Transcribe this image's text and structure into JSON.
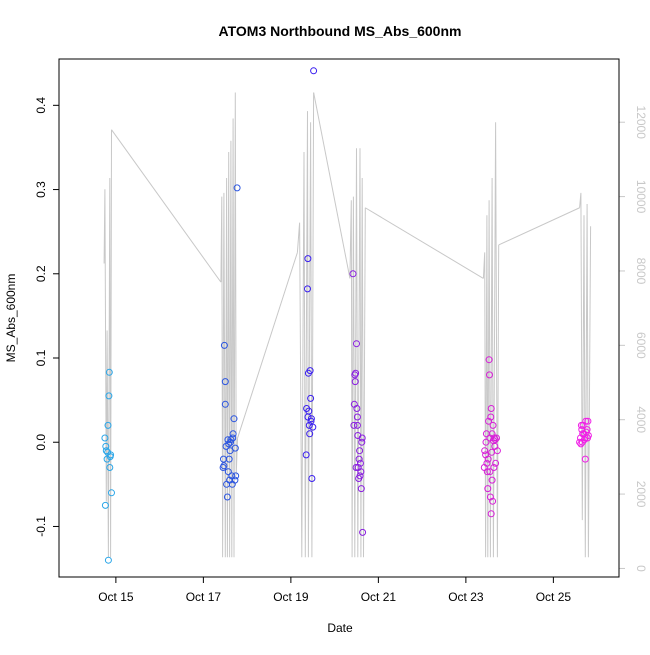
{
  "chart_data": {
    "type": "scatter",
    "title": "ATOM3 Northbound MS_Abs_600nm",
    "xlabel": "Date",
    "ylabel": "MS_Abs_600nm",
    "x_ticks": [
      "Oct 15",
      "Oct 17",
      "Oct 19",
      "Oct 21",
      "Oct 23",
      "Oct 25"
    ],
    "x_tick_values": [
      15,
      17,
      19,
      21,
      23,
      25
    ],
    "xlim": [
      13.7,
      26.5
    ],
    "y_ticks": [
      -0.1,
      0.0,
      0.1,
      0.2,
      0.3,
      0.4
    ],
    "y_tick_labels": [
      "-0.1",
      "0.0",
      "0.1",
      "0.2",
      "0.3",
      "0.4"
    ],
    "ylim": [
      -0.16,
      0.455
    ],
    "y2_ticks": [
      0,
      2000,
      4000,
      6000,
      8000,
      10000,
      12000
    ],
    "y2_tick_labels": [
      "0",
      "2000",
      "4000",
      "6000",
      "8000",
      "10000",
      "12000"
    ],
    "y2lim": [
      -230,
      13700
    ],
    "grid": false,
    "legend": "none",
    "colors": {
      "day1": "#2aa6e8",
      "day2": "#2b55e0",
      "day3": "#3a1ff0",
      "day4": "#8a1ee0",
      "day5": "#d81fd8",
      "day6": "#f01fe6",
      "altitude_line": "#c8c8c8",
      "axis": "#000000",
      "right_axis": "#c8c8c8"
    },
    "series": [
      {
        "color_key": "day1",
        "points": [
          [
            14.75,
            0.005
          ],
          [
            14.77,
            -0.005
          ],
          [
            14.78,
            -0.01
          ],
          [
            14.8,
            -0.02
          ],
          [
            14.82,
            0.02
          ],
          [
            14.84,
            0.055
          ],
          [
            14.85,
            0.083
          ],
          [
            14.86,
            -0.03
          ],
          [
            14.87,
            -0.017
          ],
          [
            14.88,
            -0.015
          ],
          [
            14.9,
            -0.06
          ],
          [
            14.76,
            -0.075
          ],
          [
            14.83,
            -0.14
          ],
          [
            14.81,
            -0.012
          ]
        ]
      },
      {
        "color_key": "day2",
        "points": [
          [
            17.45,
            -0.03
          ],
          [
            17.46,
            -0.02
          ],
          [
            17.48,
            0.115
          ],
          [
            17.5,
            0.072
          ],
          [
            17.5,
            0.045
          ],
          [
            17.52,
            -0.005
          ],
          [
            17.53,
            -0.05
          ],
          [
            17.55,
            -0.065
          ],
          [
            17.56,
            0.003
          ],
          [
            17.57,
            -0.035
          ],
          [
            17.58,
            -0.002
          ],
          [
            17.6,
            -0.045
          ],
          [
            17.62,
            0.0
          ],
          [
            17.63,
            0.003
          ],
          [
            17.65,
            -0.04
          ],
          [
            17.66,
            -0.05
          ],
          [
            17.68,
            0.01
          ],
          [
            17.7,
            0.028
          ],
          [
            17.72,
            -0.045
          ],
          [
            17.73,
            -0.007
          ],
          [
            17.74,
            -0.04
          ],
          [
            17.77,
            0.302
          ],
          [
            17.47,
            -0.028
          ],
          [
            17.61,
            -0.01
          ],
          [
            17.67,
            0.005
          ],
          [
            17.59,
            -0.02
          ]
        ]
      },
      {
        "color_key": "day3",
        "points": [
          [
            19.35,
            -0.015
          ],
          [
            19.36,
            0.04
          ],
          [
            19.38,
            0.182
          ],
          [
            19.39,
            0.218
          ],
          [
            19.4,
            0.082
          ],
          [
            19.41,
            0.037
          ],
          [
            19.42,
            0.02
          ],
          [
            19.43,
            0.01
          ],
          [
            19.44,
            0.085
          ],
          [
            19.45,
            0.052
          ],
          [
            19.46,
            0.025
          ],
          [
            19.48,
            -0.043
          ],
          [
            19.5,
            0.018
          ],
          [
            19.52,
            0.441
          ],
          [
            19.39,
            0.03
          ],
          [
            19.47,
            0.028
          ]
        ]
      },
      {
        "color_key": "day4",
        "points": [
          [
            20.42,
            0.2
          ],
          [
            20.44,
            0.02
          ],
          [
            20.45,
            0.045
          ],
          [
            20.46,
            0.08
          ],
          [
            20.47,
            0.072
          ],
          [
            20.48,
            0.082
          ],
          [
            20.5,
            0.117
          ],
          [
            20.51,
            0.04
          ],
          [
            20.52,
            0.02
          ],
          [
            20.53,
            0.008
          ],
          [
            20.54,
            -0.03
          ],
          [
            20.55,
            -0.043
          ],
          [
            20.56,
            -0.02
          ],
          [
            20.57,
            -0.01
          ],
          [
            20.58,
            -0.04
          ],
          [
            20.59,
            -0.025
          ],
          [
            20.6,
            -0.035
          ],
          [
            20.61,
            -0.055
          ],
          [
            20.62,
            0.0
          ],
          [
            20.63,
            0.005
          ],
          [
            20.64,
            -0.107
          ],
          [
            20.52,
            0.03
          ],
          [
            20.49,
            -0.03
          ]
        ]
      },
      {
        "color_key": "day5",
        "points": [
          [
            23.42,
            -0.03
          ],
          [
            23.43,
            -0.01
          ],
          [
            23.45,
            -0.015
          ],
          [
            23.46,
            0.0
          ],
          [
            23.47,
            0.01
          ],
          [
            23.48,
            -0.025
          ],
          [
            23.5,
            -0.055
          ],
          [
            23.51,
            -0.02
          ],
          [
            23.52,
            0.025
          ],
          [
            23.53,
            0.098
          ],
          [
            23.54,
            0.08
          ],
          [
            23.55,
            0.005
          ],
          [
            23.55,
            -0.035
          ],
          [
            23.56,
            -0.065
          ],
          [
            23.57,
            0.03
          ],
          [
            23.58,
            0.04
          ],
          [
            23.59,
            -0.012
          ],
          [
            23.6,
            -0.045
          ],
          [
            23.61,
            -0.07
          ],
          [
            23.62,
            0.02
          ],
          [
            23.63,
            0.002
          ],
          [
            23.64,
            -0.03
          ],
          [
            23.65,
            0.005
          ],
          [
            23.66,
            -0.005
          ],
          [
            23.67,
            0.003
          ],
          [
            23.68,
            -0.025
          ],
          [
            23.7,
            0.005
          ],
          [
            23.72,
            -0.01
          ],
          [
            23.58,
            -0.085
          ],
          [
            23.49,
            -0.035
          ],
          [
            23.6,
            0.01
          ]
        ]
      },
      {
        "color_key": "day6",
        "points": [
          [
            25.6,
            0.0
          ],
          [
            25.62,
            0.005
          ],
          [
            25.63,
            -0.002
          ],
          [
            25.64,
            0.02
          ],
          [
            25.65,
            0.015
          ],
          [
            25.66,
            0.0
          ],
          [
            25.67,
            0.01
          ],
          [
            25.68,
            0.02
          ],
          [
            25.7,
            0.01
          ],
          [
            25.71,
            0.003
          ],
          [
            25.72,
            0.005
          ],
          [
            25.73,
            -0.02
          ],
          [
            25.74,
            0.025
          ],
          [
            25.75,
            0.012
          ],
          [
            25.77,
            0.015
          ],
          [
            25.78,
            0.005
          ],
          [
            25.79,
            0.025
          ],
          [
            25.8,
            0.008
          ]
        ]
      }
    ],
    "altitude_series": {
      "axis": "right",
      "line_points": [
        [
          14.73,
          8200
        ],
        [
          14.75,
          10200
        ],
        [
          14.78,
          1800
        ],
        [
          14.8,
          6400
        ],
        [
          14.83,
          300
        ],
        [
          14.86,
          10500
        ],
        [
          14.88,
          300
        ],
        [
          14.9,
          11800
        ],
        [
          17.4,
          7700
        ],
        [
          17.42,
          10000
        ],
        [
          17.44,
          300
        ],
        [
          17.47,
          10100
        ],
        [
          17.5,
          300
        ],
        [
          17.53,
          10500
        ],
        [
          17.55,
          300
        ],
        [
          17.58,
          11200
        ],
        [
          17.6,
          300
        ],
        [
          17.63,
          11500
        ],
        [
          17.65,
          300
        ],
        [
          17.68,
          12100
        ],
        [
          17.7,
          300
        ],
        [
          17.73,
          12800
        ],
        [
          17.75,
          2500
        ],
        [
          17.78,
          3500
        ],
        [
          19.15,
          8500
        ],
        [
          19.2,
          9300
        ],
        [
          19.25,
          300
        ],
        [
          19.3,
          11200
        ],
        [
          19.33,
          300
        ],
        [
          19.38,
          12300
        ],
        [
          19.4,
          300
        ],
        [
          19.45,
          12000
        ],
        [
          19.48,
          300
        ],
        [
          19.52,
          12800
        ],
        [
          20.35,
          7800
        ],
        [
          20.38,
          9900
        ],
        [
          20.4,
          300
        ],
        [
          20.43,
          10000
        ],
        [
          20.46,
          300
        ],
        [
          20.5,
          11300
        ],
        [
          20.53,
          300
        ],
        [
          20.58,
          11300
        ],
        [
          20.6,
          300
        ],
        [
          20.63,
          10500
        ],
        [
          20.66,
          300
        ],
        [
          20.7,
          9700
        ],
        [
          23.4,
          7800
        ],
        [
          23.43,
          8500
        ],
        [
          23.45,
          300
        ],
        [
          23.48,
          9500
        ],
        [
          23.5,
          300
        ],
        [
          23.53,
          9900
        ],
        [
          23.56,
          300
        ],
        [
          23.6,
          10500
        ],
        [
          23.63,
          300
        ],
        [
          23.68,
          12000
        ],
        [
          23.72,
          300
        ],
        [
          23.75,
          8700
        ],
        [
          25.6,
          9700
        ],
        [
          25.63,
          10100
        ],
        [
          25.66,
          1300
        ],
        [
          25.7,
          9500
        ],
        [
          25.73,
          300
        ],
        [
          25.77,
          9800
        ],
        [
          25.8,
          300
        ],
        [
          25.85,
          9200
        ]
      ],
      "connectors": [
        [
          [
            14.9,
            11800
          ],
          [
            17.4,
            7700
          ]
        ],
        [
          [
            17.78,
            3500
          ],
          [
            19.15,
            8500
          ]
        ],
        [
          [
            19.52,
            12800
          ],
          [
            20.35,
            7800
          ]
        ],
        [
          [
            20.7,
            9700
          ],
          [
            23.4,
            7800
          ]
        ],
        [
          [
            23.75,
            8700
          ],
          [
            25.6,
            9700
          ]
        ]
      ]
    }
  }
}
